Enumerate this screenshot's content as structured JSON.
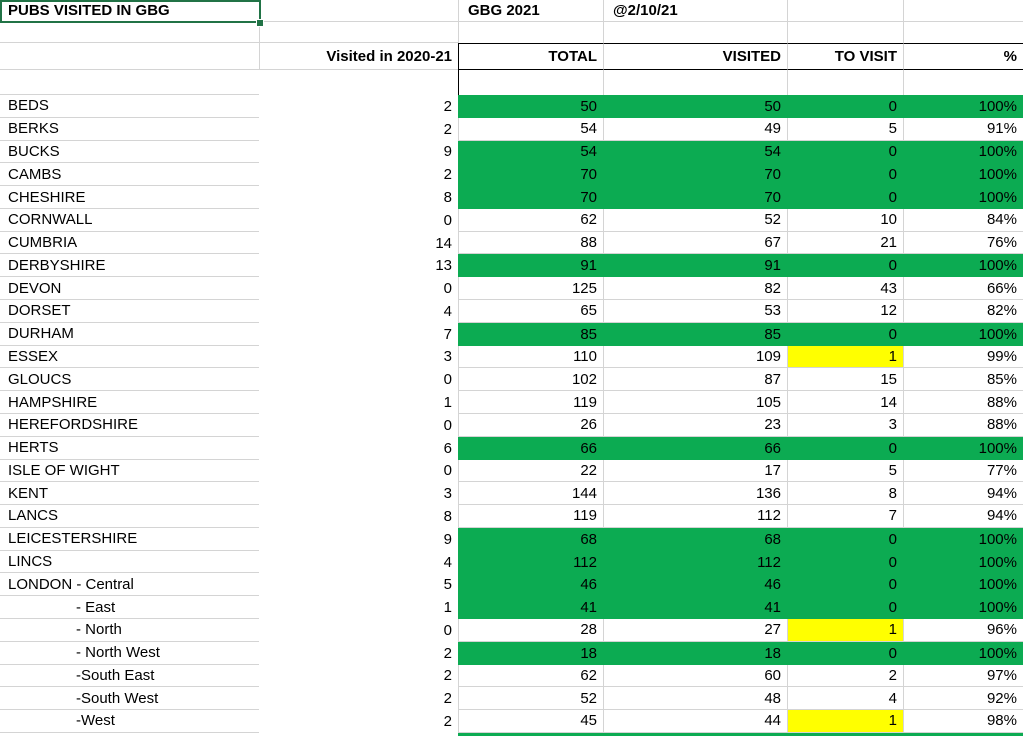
{
  "title": "PUBS VISITED IN GBG",
  "top": {
    "book": "GBG 2021",
    "as_of_date": "@2/10/21"
  },
  "columns": {
    "prev_season": "Visited in 2020-21",
    "total": "TOTAL",
    "visited": "VISITED",
    "to_visit": "TO VISIT",
    "percent": "%"
  },
  "colors": {
    "green": "#0cab52",
    "yellow": "#ffff00",
    "selection": "#217346",
    "gridline": "#d4d4d4"
  },
  "rows": [
    {
      "name": "BEDS",
      "indent": false,
      "prev": 2,
      "total": 50,
      "visited": 50,
      "to_visit": 0,
      "percent": "100%",
      "fill": "green",
      "to_visit_fill": null
    },
    {
      "name": "BERKS",
      "indent": false,
      "prev": 2,
      "total": 54,
      "visited": 49,
      "to_visit": 5,
      "percent": "91%",
      "fill": "none",
      "to_visit_fill": null
    },
    {
      "name": "BUCKS",
      "indent": false,
      "prev": 9,
      "total": 54,
      "visited": 54,
      "to_visit": 0,
      "percent": "100%",
      "fill": "green",
      "to_visit_fill": null
    },
    {
      "name": "CAMBS",
      "indent": false,
      "prev": 2,
      "total": 70,
      "visited": 70,
      "to_visit": 0,
      "percent": "100%",
      "fill": "green",
      "to_visit_fill": null
    },
    {
      "name": "CHESHIRE",
      "indent": false,
      "prev": 8,
      "total": 70,
      "visited": 70,
      "to_visit": 0,
      "percent": "100%",
      "fill": "green",
      "to_visit_fill": null
    },
    {
      "name": "CORNWALL",
      "indent": false,
      "prev": 0,
      "total": 62,
      "visited": 52,
      "to_visit": 10,
      "percent": "84%",
      "fill": "none",
      "to_visit_fill": null
    },
    {
      "name": "CUMBRIA",
      "indent": false,
      "prev": 14,
      "total": 88,
      "visited": 67,
      "to_visit": 21,
      "percent": "76%",
      "fill": "none",
      "to_visit_fill": null
    },
    {
      "name": "DERBYSHIRE",
      "indent": false,
      "prev": 13,
      "total": 91,
      "visited": 91,
      "to_visit": 0,
      "percent": "100%",
      "fill": "green",
      "to_visit_fill": null
    },
    {
      "name": "DEVON",
      "indent": false,
      "prev": 0,
      "total": 125,
      "visited": 82,
      "to_visit": 43,
      "percent": "66%",
      "fill": "none",
      "to_visit_fill": null
    },
    {
      "name": "DORSET",
      "indent": false,
      "prev": 4,
      "total": 65,
      "visited": 53,
      "to_visit": 12,
      "percent": "82%",
      "fill": "none",
      "to_visit_fill": null
    },
    {
      "name": "DURHAM",
      "indent": false,
      "prev": 7,
      "total": 85,
      "visited": 85,
      "to_visit": 0,
      "percent": "100%",
      "fill": "green",
      "to_visit_fill": null
    },
    {
      "name": "ESSEX",
      "indent": false,
      "prev": 3,
      "total": 110,
      "visited": 109,
      "to_visit": 1,
      "percent": "99%",
      "fill": "none",
      "to_visit_fill": "yellow"
    },
    {
      "name": "GLOUCS",
      "indent": false,
      "prev": 0,
      "total": 102,
      "visited": 87,
      "to_visit": 15,
      "percent": "85%",
      "fill": "none",
      "to_visit_fill": null
    },
    {
      "name": "HAMPSHIRE",
      "indent": false,
      "prev": 1,
      "total": 119,
      "visited": 105,
      "to_visit": 14,
      "percent": "88%",
      "fill": "none",
      "to_visit_fill": null
    },
    {
      "name": "HEREFORDSHIRE",
      "indent": false,
      "prev": 0,
      "total": 26,
      "visited": 23,
      "to_visit": 3,
      "percent": "88%",
      "fill": "none",
      "to_visit_fill": null
    },
    {
      "name": "HERTS",
      "indent": false,
      "prev": 6,
      "total": 66,
      "visited": 66,
      "to_visit": 0,
      "percent": "100%",
      "fill": "green",
      "to_visit_fill": null
    },
    {
      "name": "ISLE OF WIGHT",
      "indent": false,
      "prev": 0,
      "total": 22,
      "visited": 17,
      "to_visit": 5,
      "percent": "77%",
      "fill": "none",
      "to_visit_fill": null
    },
    {
      "name": "KENT",
      "indent": false,
      "prev": 3,
      "total": 144,
      "visited": 136,
      "to_visit": 8,
      "percent": "94%",
      "fill": "none",
      "to_visit_fill": null
    },
    {
      "name": "LANCS",
      "indent": false,
      "prev": 8,
      "total": 119,
      "visited": 112,
      "to_visit": 7,
      "percent": "94%",
      "fill": "none",
      "to_visit_fill": null
    },
    {
      "name": "LEICESTERSHIRE",
      "indent": false,
      "prev": 9,
      "total": 68,
      "visited": 68,
      "to_visit": 0,
      "percent": "100%",
      "fill": "green",
      "to_visit_fill": null
    },
    {
      "name": "LINCS",
      "indent": false,
      "prev": 4,
      "total": 112,
      "visited": 112,
      "to_visit": 0,
      "percent": "100%",
      "fill": "green",
      "to_visit_fill": null
    },
    {
      "name": "LONDON - Central",
      "indent": false,
      "prev": 5,
      "total": 46,
      "visited": 46,
      "to_visit": 0,
      "percent": "100%",
      "fill": "green",
      "to_visit_fill": null
    },
    {
      "name": "- East",
      "indent": true,
      "prev": 1,
      "total": 41,
      "visited": 41,
      "to_visit": 0,
      "percent": "100%",
      "fill": "green",
      "to_visit_fill": null
    },
    {
      "name": "- North",
      "indent": true,
      "prev": 0,
      "total": 28,
      "visited": 27,
      "to_visit": 1,
      "percent": "96%",
      "fill": "none",
      "to_visit_fill": "yellow"
    },
    {
      "name": "- North West",
      "indent": true,
      "prev": 2,
      "total": 18,
      "visited": 18,
      "to_visit": 0,
      "percent": "100%",
      "fill": "green",
      "to_visit_fill": null
    },
    {
      "name": "-South East",
      "indent": true,
      "prev": 2,
      "total": 62,
      "visited": 60,
      "to_visit": 2,
      "percent": "97%",
      "fill": "none",
      "to_visit_fill": null
    },
    {
      "name": "-South West",
      "indent": true,
      "prev": 2,
      "total": 52,
      "visited": 48,
      "to_visit": 4,
      "percent": "92%",
      "fill": "none",
      "to_visit_fill": null
    },
    {
      "name": "-West",
      "indent": true,
      "prev": 2,
      "total": 45,
      "visited": 44,
      "to_visit": 1,
      "percent": "98%",
      "fill": "none",
      "to_visit_fill": "yellow"
    }
  ]
}
